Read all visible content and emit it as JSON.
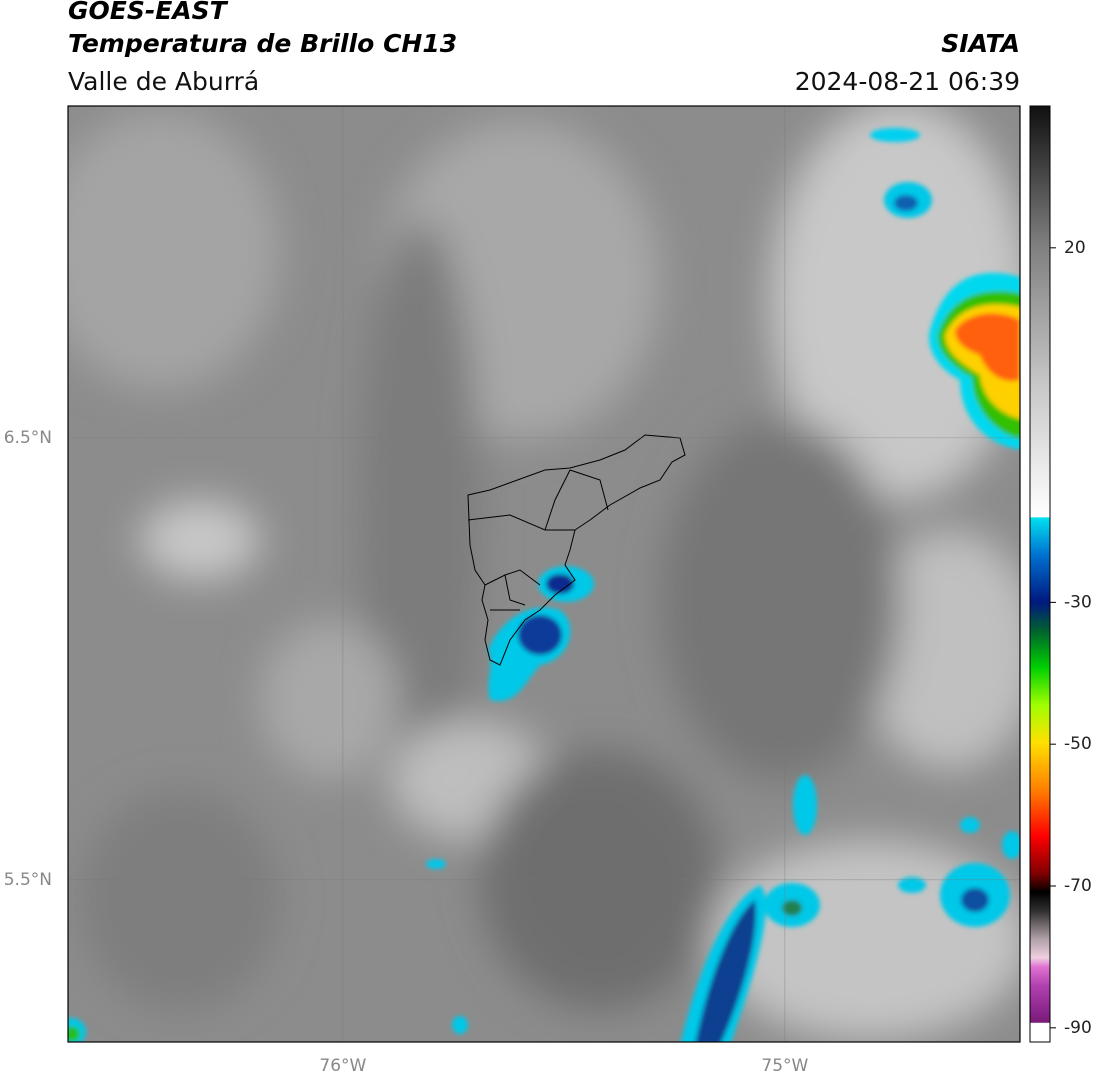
{
  "header": {
    "title": "GOES-EAST",
    "subtitle": "Temperatura de Brillo CH13",
    "region": "Valle de Aburrá",
    "source": "SIATA",
    "datetime": "2024-08-21 06:39"
  },
  "map": {
    "xlim": [
      -76.622,
      -74.468
    ],
    "ylim": [
      5.133,
      7.251
    ],
    "xticks": [
      {
        "value": -76,
        "label": "76°W"
      },
      {
        "value": -75,
        "label": "75°W"
      }
    ],
    "yticks": [
      {
        "value": 6.5,
        "label": "6.5°N"
      },
      {
        "value": 5.5,
        "label": "5.5°N"
      }
    ],
    "grid": true
  },
  "colorbar": {
    "lim": [
      -92,
      40
    ],
    "ticks": [
      20,
      -30,
      -50,
      -70,
      -90
    ]
  }
}
